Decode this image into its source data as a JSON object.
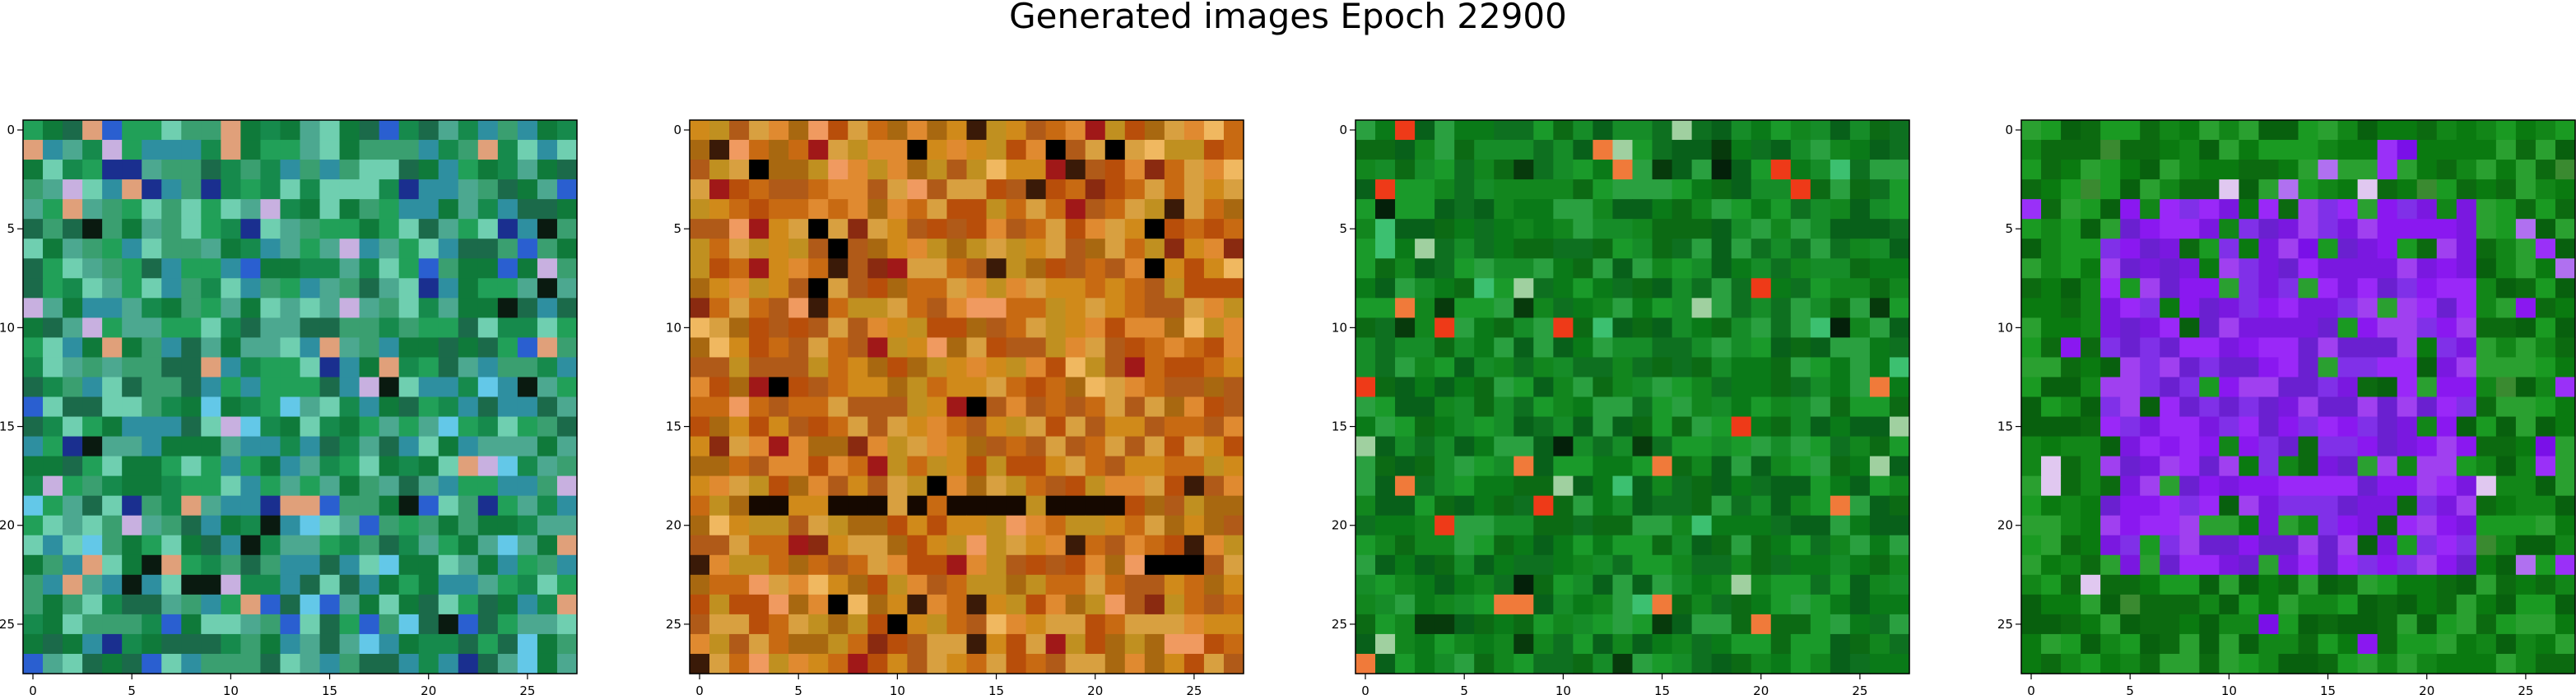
{
  "figure": {
    "title": "Generated images Epoch 22900"
  },
  "chart_data": [
    {
      "type": "heatmap",
      "palette": "teal-green",
      "grid_size": 28,
      "x_ticks": [
        "0",
        "5",
        "10",
        "15",
        "20",
        "25"
      ],
      "y_ticks": [
        "0",
        "5",
        "10",
        "15",
        "20",
        "25"
      ],
      "xlim": [
        -0.5,
        27.5
      ],
      "ylim": [
        27.5,
        -0.5
      ],
      "base_colors": [
        "#0f7a3a",
        "#168a4c",
        "#21a058",
        "#3a9f70",
        "#2e8fa0",
        "#6fcfb0",
        "#1b6a4a",
        "#4ca890"
      ],
      "accent_colors": [
        "#1a2f8f",
        "#2a5fd0",
        "#63c8e8",
        "#c8b0e0",
        "#e0a07a",
        "#0a1a10"
      ],
      "accent_rate": 0.14,
      "seed": 11
    },
    {
      "type": "heatmap",
      "palette": "orange-brown",
      "grid_size": 28,
      "x_ticks": [
        "0",
        "5",
        "10",
        "15",
        "20",
        "25"
      ],
      "y_ticks": [
        "0",
        "5",
        "10",
        "15",
        "20",
        "25"
      ],
      "xlim": [
        -0.5,
        27.5
      ],
      "ylim": [
        27.5,
        -0.5
      ],
      "base_colors": [
        "#c86a12",
        "#b84e0a",
        "#d08a1a",
        "#a86810",
        "#c09020",
        "#d8a040",
        "#b05a18",
        "#e08a30"
      ],
      "accent_colors": [
        "#8a2a10",
        "#3a1a08",
        "#f0b860",
        "#a01818",
        "#f09a60",
        "#000000"
      ],
      "accent_rate": 0.12,
      "dark_row": 19,
      "seed": 23
    },
    {
      "type": "heatmap",
      "palette": "green",
      "grid_size": 28,
      "x_ticks": [
        "0",
        "5",
        "10",
        "15",
        "20",
        "25"
      ],
      "y_ticks": [
        "0",
        "5",
        "10",
        "15",
        "20",
        "25"
      ],
      "xlim": [
        -0.5,
        27.5
      ],
      "ylim": [
        27.5,
        -0.5
      ],
      "base_colors": [
        "#0a7a18",
        "#12861e",
        "#0c6a14",
        "#1a9a2a",
        "#08601a",
        "#2aa040",
        "#0e7020",
        "#168c28"
      ],
      "accent_colors": [
        "#073a0c",
        "#ee3a18",
        "#f07a3a",
        "#3cc070",
        "#a0d0a0",
        "#04200a"
      ],
      "accent_rate": 0.08,
      "seed": 37
    },
    {
      "type": "heatmap",
      "palette": "green-violet",
      "grid_size": 28,
      "x_ticks": [
        "0",
        "5",
        "10",
        "15",
        "20",
        "25"
      ],
      "y_ticks": [
        "0",
        "5",
        "10",
        "15",
        "20",
        "25"
      ],
      "xlim": [
        -0.5,
        27.5
      ],
      "ylim": [
        27.5,
        -0.5
      ],
      "base_colors": [
        "#0a7a10",
        "#128618",
        "#0c6a10",
        "#1a9a22",
        "#08600e",
        "#2aa030"
      ],
      "accent_colors": [
        "#8a18f0",
        "#9a30f8",
        "#7a10e8",
        "#b070f0",
        "#e0c8f0",
        "#3a8a30"
      ],
      "accent_rate": 0.1,
      "inner_region": [
        4,
        22,
        4,
        22
      ],
      "inner_colors": [
        "#8a18f0",
        "#9a28f8",
        "#7a18e0",
        "#a040f0",
        "#8030e8",
        "#6a20d0"
      ],
      "seed": 51
    }
  ]
}
